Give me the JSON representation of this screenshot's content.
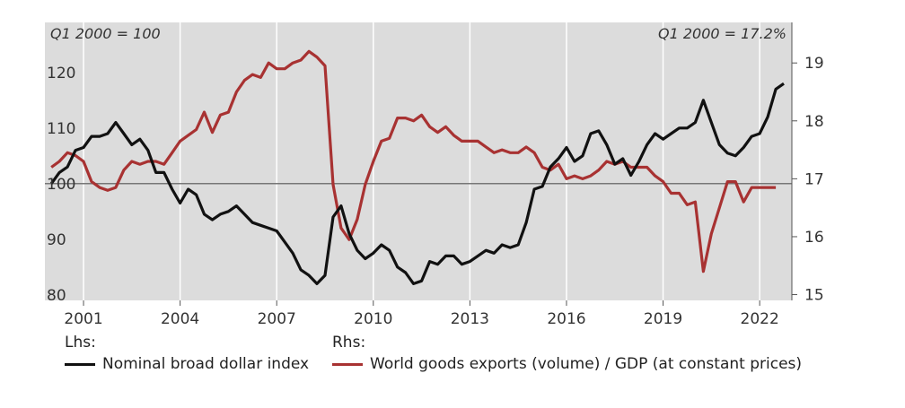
{
  "chart_data": {
    "type": "line",
    "left_axis_note": "Q1 2000 = 100",
    "right_axis_note": "Q1 2000 = 17.2%",
    "x_ticks": [
      "2001",
      "2004",
      "2007",
      "2010",
      "2013",
      "2016",
      "2019",
      "2022"
    ],
    "x_tick_values": [
      2001,
      2004,
      2007,
      2010,
      2013,
      2016,
      2019,
      2022
    ],
    "xlim": [
      1999.8,
      2023.0
    ],
    "left_ticks": [
      "80",
      "90",
      "100",
      "110",
      "120"
    ],
    "left_tick_values": [
      80,
      90,
      100,
      110,
      120
    ],
    "ylim_left": [
      79,
      129
    ],
    "right_ticks": [
      "15",
      "16",
      "17",
      "18",
      "19"
    ],
    "right_tick_values": [
      15,
      16,
      17,
      18,
      19
    ],
    "ylim_right": [
      14.9,
      19.7
    ],
    "reference_line_left": 100,
    "series": [
      {
        "name": "Nominal broad dollar index",
        "axis": "left",
        "color": "#111111",
        "points": [
          [
            2000.0,
            100
          ],
          [
            2000.25,
            102
          ],
          [
            2000.5,
            103
          ],
          [
            2000.75,
            106
          ],
          [
            2001.0,
            106.5
          ],
          [
            2001.25,
            108.5
          ],
          [
            2001.5,
            108.5
          ],
          [
            2001.75,
            109
          ],
          [
            2002.0,
            111
          ],
          [
            2002.25,
            109
          ],
          [
            2002.5,
            107
          ],
          [
            2002.75,
            108
          ],
          [
            2003.0,
            106
          ],
          [
            2003.25,
            102
          ],
          [
            2003.5,
            102
          ],
          [
            2003.75,
            99
          ],
          [
            2004.0,
            96.5
          ],
          [
            2004.25,
            99
          ],
          [
            2004.5,
            98
          ],
          [
            2004.75,
            94.5
          ],
          [
            2005.0,
            93.5
          ],
          [
            2005.25,
            94.5
          ],
          [
            2005.5,
            95
          ],
          [
            2005.75,
            96
          ],
          [
            2006.0,
            94.5
          ],
          [
            2006.25,
            93
          ],
          [
            2006.5,
            92.5
          ],
          [
            2006.75,
            92
          ],
          [
            2007.0,
            91.5
          ],
          [
            2007.25,
            89.5
          ],
          [
            2007.5,
            87.5
          ],
          [
            2007.75,
            84.5
          ],
          [
            2008.0,
            83.5
          ],
          [
            2008.25,
            82
          ],
          [
            2008.5,
            83.5
          ],
          [
            2008.75,
            94
          ],
          [
            2009.0,
            96
          ],
          [
            2009.25,
            91
          ],
          [
            2009.5,
            88
          ],
          [
            2009.75,
            86.5
          ],
          [
            2010.0,
            87.5
          ],
          [
            2010.25,
            89
          ],
          [
            2010.5,
            88
          ],
          [
            2010.75,
            85
          ],
          [
            2011.0,
            84
          ],
          [
            2011.25,
            82
          ],
          [
            2011.5,
            82.5
          ],
          [
            2011.75,
            86
          ],
          [
            2012.0,
            85.5
          ],
          [
            2012.25,
            87
          ],
          [
            2012.5,
            87
          ],
          [
            2012.75,
            85.5
          ],
          [
            2013.0,
            86
          ],
          [
            2013.25,
            87
          ],
          [
            2013.5,
            88
          ],
          [
            2013.75,
            87.5
          ],
          [
            2014.0,
            89
          ],
          [
            2014.25,
            88.5
          ],
          [
            2014.5,
            89
          ],
          [
            2014.75,
            93
          ],
          [
            2015.0,
            99
          ],
          [
            2015.25,
            99.5
          ],
          [
            2015.5,
            103
          ],
          [
            2015.75,
            104.5
          ],
          [
            2016.0,
            106.5
          ],
          [
            2016.25,
            104
          ],
          [
            2016.5,
            105
          ],
          [
            2016.75,
            109
          ],
          [
            2017.0,
            109.5
          ],
          [
            2017.25,
            107
          ],
          [
            2017.5,
            103.5
          ],
          [
            2017.75,
            104.5
          ],
          [
            2018.0,
            101.5
          ],
          [
            2018.25,
            104
          ],
          [
            2018.5,
            107
          ],
          [
            2018.75,
            109
          ],
          [
            2019.0,
            108
          ],
          [
            2019.25,
            109
          ],
          [
            2019.5,
            110
          ],
          [
            2019.75,
            110
          ],
          [
            2020.0,
            111
          ],
          [
            2020.25,
            115
          ],
          [
            2020.5,
            111
          ],
          [
            2020.75,
            107
          ],
          [
            2021.0,
            105.5
          ],
          [
            2021.25,
            105
          ],
          [
            2021.5,
            106.5
          ],
          [
            2021.75,
            108.5
          ],
          [
            2022.0,
            109
          ],
          [
            2022.25,
            112
          ],
          [
            2022.5,
            117
          ],
          [
            2022.75,
            118
          ]
        ]
      },
      {
        "name": "World goods exports (volume) / GDP (at constant prices)",
        "axis": "right",
        "color": "#a83232",
        "points": [
          [
            2000.0,
            17.2
          ],
          [
            2000.25,
            17.3
          ],
          [
            2000.5,
            17.45
          ],
          [
            2000.75,
            17.4
          ],
          [
            2001.0,
            17.3
          ],
          [
            2001.25,
            16.95
          ],
          [
            2001.5,
            16.85
          ],
          [
            2001.75,
            16.8
          ],
          [
            2002.0,
            16.85
          ],
          [
            2002.25,
            17.15
          ],
          [
            2002.5,
            17.3
          ],
          [
            2002.75,
            17.25
          ],
          [
            2003.0,
            17.3
          ],
          [
            2003.25,
            17.3
          ],
          [
            2003.5,
            17.25
          ],
          [
            2003.75,
            17.45
          ],
          [
            2004.0,
            17.65
          ],
          [
            2004.25,
            17.75
          ],
          [
            2004.5,
            17.85
          ],
          [
            2004.75,
            18.15
          ],
          [
            2005.0,
            17.8
          ],
          [
            2005.25,
            18.1
          ],
          [
            2005.5,
            18.15
          ],
          [
            2005.75,
            18.5
          ],
          [
            2006.0,
            18.7
          ],
          [
            2006.25,
            18.8
          ],
          [
            2006.5,
            18.75
          ],
          [
            2006.75,
            19.0
          ],
          [
            2007.0,
            18.9
          ],
          [
            2007.25,
            18.9
          ],
          [
            2007.5,
            19.0
          ],
          [
            2007.75,
            19.05
          ],
          [
            2008.0,
            19.2
          ],
          [
            2008.25,
            19.1
          ],
          [
            2008.5,
            18.95
          ],
          [
            2008.75,
            16.9
          ],
          [
            2009.0,
            16.15
          ],
          [
            2009.25,
            15.95
          ],
          [
            2009.5,
            16.3
          ],
          [
            2009.75,
            16.9
          ],
          [
            2010.0,
            17.3
          ],
          [
            2010.25,
            17.65
          ],
          [
            2010.5,
            17.7
          ],
          [
            2010.75,
            18.05
          ],
          [
            2011.0,
            18.05
          ],
          [
            2011.25,
            18.0
          ],
          [
            2011.5,
            18.1
          ],
          [
            2011.75,
            17.9
          ],
          [
            2012.0,
            17.8
          ],
          [
            2012.25,
            17.9
          ],
          [
            2012.5,
            17.75
          ],
          [
            2012.75,
            17.65
          ],
          [
            2013.0,
            17.65
          ],
          [
            2013.25,
            17.65
          ],
          [
            2013.5,
            17.55
          ],
          [
            2013.75,
            17.45
          ],
          [
            2014.0,
            17.5
          ],
          [
            2014.25,
            17.45
          ],
          [
            2014.5,
            17.45
          ],
          [
            2014.75,
            17.55
          ],
          [
            2015.0,
            17.45
          ],
          [
            2015.25,
            17.2
          ],
          [
            2015.5,
            17.15
          ],
          [
            2015.75,
            17.25
          ],
          [
            2016.0,
            17.0
          ],
          [
            2016.25,
            17.05
          ],
          [
            2016.5,
            17.0
          ],
          [
            2016.75,
            17.05
          ],
          [
            2017.0,
            17.15
          ],
          [
            2017.25,
            17.3
          ],
          [
            2017.5,
            17.25
          ],
          [
            2017.75,
            17.3
          ],
          [
            2018.0,
            17.2
          ],
          [
            2018.25,
            17.2
          ],
          [
            2018.5,
            17.2
          ],
          [
            2018.75,
            17.05
          ],
          [
            2019.0,
            16.95
          ],
          [
            2019.25,
            16.75
          ],
          [
            2019.5,
            16.75
          ],
          [
            2019.75,
            16.55
          ],
          [
            2020.0,
            16.6
          ],
          [
            2020.25,
            15.4
          ],
          [
            2020.5,
            16.05
          ],
          [
            2020.75,
            16.5
          ],
          [
            2021.0,
            16.95
          ],
          [
            2021.25,
            16.95
          ],
          [
            2021.5,
            16.6
          ],
          [
            2021.75,
            16.85
          ],
          [
            2022.0,
            16.85
          ],
          [
            2022.25,
            16.85
          ],
          [
            2022.5,
            16.85
          ]
        ]
      }
    ]
  },
  "legend": {
    "lhs_label": "Lhs:",
    "rhs_label": "Rhs:",
    "items": [
      {
        "label": "Nominal broad dollar index",
        "color": "#111111"
      },
      {
        "label": "World goods exports (volume) / GDP (at constant prices)",
        "color": "#a83232"
      }
    ]
  }
}
